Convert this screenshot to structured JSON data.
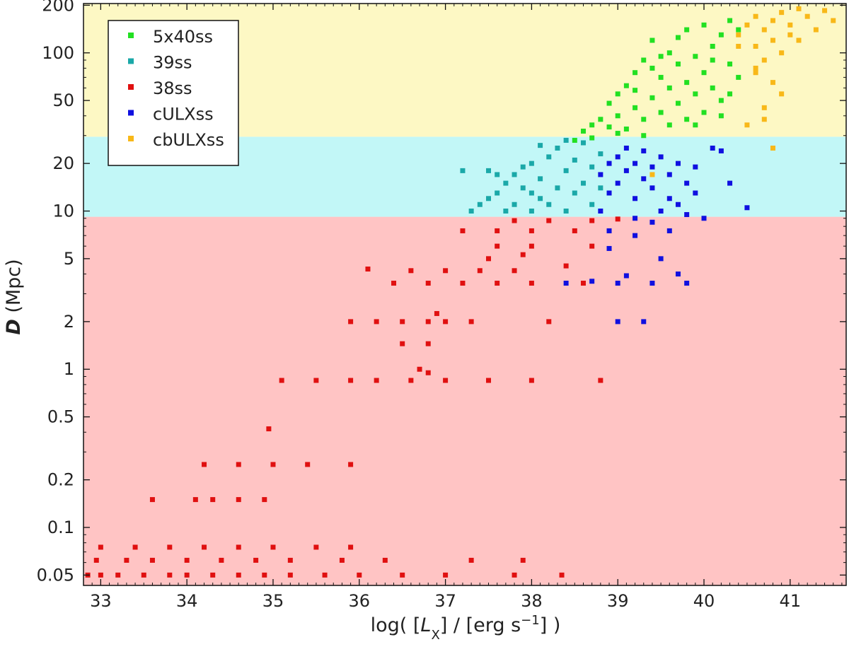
{
  "chart_data": {
    "type": "scatter",
    "title": "",
    "xlabel": {
      "prefix": "log( [",
      "var": "L",
      "sub": "X",
      "mid": "] / [erg s",
      "sup": "−1",
      "suffix": "] )"
    },
    "ylabel": {
      "var": "D",
      "rest": " (Mpc)"
    },
    "xlim": [
      32.8,
      41.65
    ],
    "ylim": [
      0.043,
      205
    ],
    "yscale": "log",
    "xticks": [
      33,
      34,
      35,
      36,
      37,
      38,
      39,
      40,
      41
    ],
    "xtick_labels": [
      "33",
      "34",
      "35",
      "36",
      "37",
      "38",
      "39",
      "40",
      "41"
    ],
    "yticks": [
      0.05,
      0.1,
      0.2,
      0.5,
      1,
      2,
      5,
      10,
      20,
      50,
      100,
      200
    ],
    "ytick_labels": [
      "0.05",
      "0.1",
      "0.2",
      "0.5",
      "1",
      "2",
      "5",
      "10",
      "20",
      "50",
      "100",
      "200"
    ],
    "grid": false,
    "legend_position": "top-left",
    "background_bands": [
      {
        "y_from": 0.043,
        "y_to": 9.2,
        "color": "#ffc4c4"
      },
      {
        "y_from": 9.2,
        "y_to": 29.5,
        "color": "#c2f7f7"
      },
      {
        "y_from": 29.5,
        "y_to": 205,
        "color": "#fdf8c4"
      }
    ],
    "series": [
      {
        "name": "5x40ss",
        "color": "#22e022",
        "points": [
          [
            38.5,
            28
          ],
          [
            38.6,
            32
          ],
          [
            38.7,
            35
          ],
          [
            38.8,
            38
          ],
          [
            38.9,
            34
          ],
          [
            39.0,
            40
          ],
          [
            39.0,
            55
          ],
          [
            39.1,
            33
          ],
          [
            39.1,
            62
          ],
          [
            39.2,
            45
          ],
          [
            39.2,
            75
          ],
          [
            39.3,
            38
          ],
          [
            39.3,
            90
          ],
          [
            39.4,
            52
          ],
          [
            39.4,
            120
          ],
          [
            39.5,
            42
          ],
          [
            39.5,
            70
          ],
          [
            39.6,
            35
          ],
          [
            39.6,
            60
          ],
          [
            39.6,
            100
          ],
          [
            39.7,
            48
          ],
          [
            39.7,
            85
          ],
          [
            39.8,
            38
          ],
          [
            39.8,
            65
          ],
          [
            39.8,
            140
          ],
          [
            39.9,
            55
          ],
          [
            39.9,
            95
          ],
          [
            40.0,
            42
          ],
          [
            40.0,
            75
          ],
          [
            40.0,
            150
          ],
          [
            40.1,
            60
          ],
          [
            40.1,
            110
          ],
          [
            40.2,
            50
          ],
          [
            40.2,
            130
          ],
          [
            40.3,
            85
          ],
          [
            40.3,
            160
          ],
          [
            40.4,
            70
          ],
          [
            40.4,
            140
          ],
          [
            38.9,
            48
          ],
          [
            39.2,
            58
          ],
          [
            39.5,
            95
          ],
          [
            39.7,
            125
          ],
          [
            40.1,
            90
          ],
          [
            40.2,
            40
          ],
          [
            39.3,
            30
          ],
          [
            38.7,
            29
          ],
          [
            39.9,
            35
          ],
          [
            40.3,
            55
          ],
          [
            39.4,
            80
          ],
          [
            39.0,
            31
          ]
        ]
      },
      {
        "name": "39ss",
        "color": "#1aa8a8",
        "points": [
          [
            37.3,
            10
          ],
          [
            37.4,
            11
          ],
          [
            37.5,
            12
          ],
          [
            37.6,
            13
          ],
          [
            37.7,
            10
          ],
          [
            37.7,
            15
          ],
          [
            37.8,
            17
          ],
          [
            37.8,
            11
          ],
          [
            37.9,
            14
          ],
          [
            37.9,
            19
          ],
          [
            38.0,
            10
          ],
          [
            38.0,
            13
          ],
          [
            38.0,
            20
          ],
          [
            38.1,
            12
          ],
          [
            38.1,
            16
          ],
          [
            38.2,
            22
          ],
          [
            38.2,
            11
          ],
          [
            38.3,
            14
          ],
          [
            38.3,
            25
          ],
          [
            38.4,
            10
          ],
          [
            38.4,
            18
          ],
          [
            38.5,
            13
          ],
          [
            38.5,
            21
          ],
          [
            38.6,
            15
          ],
          [
            38.6,
            27
          ],
          [
            38.7,
            11
          ],
          [
            38.7,
            19
          ],
          [
            38.8,
            23
          ],
          [
            38.8,
            14
          ],
          [
            37.6,
            17
          ],
          [
            37.2,
            18
          ],
          [
            38.4,
            28
          ],
          [
            38.1,
            26
          ],
          [
            37.5,
            18
          ]
        ]
      },
      {
        "name": "38ss",
        "color": "#e01010",
        "points": [
          [
            32.85,
            0.05
          ],
          [
            33.0,
            0.05
          ],
          [
            33.2,
            0.05
          ],
          [
            33.5,
            0.05
          ],
          [
            33.8,
            0.05
          ],
          [
            34.0,
            0.05
          ],
          [
            34.3,
            0.05
          ],
          [
            34.6,
            0.05
          ],
          [
            34.9,
            0.05
          ],
          [
            35.2,
            0.05
          ],
          [
            35.6,
            0.05
          ],
          [
            36.0,
            0.05
          ],
          [
            36.5,
            0.05
          ],
          [
            37.0,
            0.05
          ],
          [
            37.8,
            0.05
          ],
          [
            38.35,
            0.05
          ],
          [
            32.95,
            0.062
          ],
          [
            33.3,
            0.062
          ],
          [
            33.6,
            0.062
          ],
          [
            34.0,
            0.062
          ],
          [
            34.4,
            0.062
          ],
          [
            34.8,
            0.062
          ],
          [
            35.2,
            0.062
          ],
          [
            35.8,
            0.062
          ],
          [
            36.3,
            0.062
          ],
          [
            37.3,
            0.062
          ],
          [
            37.9,
            0.062
          ],
          [
            33.0,
            0.075
          ],
          [
            33.4,
            0.075
          ],
          [
            33.8,
            0.075
          ],
          [
            34.2,
            0.075
          ],
          [
            34.6,
            0.075
          ],
          [
            35.0,
            0.075
          ],
          [
            35.5,
            0.075
          ],
          [
            35.9,
            0.075
          ],
          [
            33.6,
            0.15
          ],
          [
            34.1,
            0.15
          ],
          [
            34.3,
            0.15
          ],
          [
            34.6,
            0.15
          ],
          [
            34.9,
            0.15
          ],
          [
            34.2,
            0.25
          ],
          [
            34.6,
            0.25
          ],
          [
            35.0,
            0.25
          ],
          [
            35.4,
            0.25
          ],
          [
            35.9,
            0.25
          ],
          [
            34.95,
            0.42
          ],
          [
            35.1,
            0.85
          ],
          [
            35.5,
            0.85
          ],
          [
            35.9,
            0.85
          ],
          [
            36.2,
            0.85
          ],
          [
            36.6,
            0.85
          ],
          [
            37.0,
            0.85
          ],
          [
            37.5,
            0.85
          ],
          [
            38.0,
            0.85
          ],
          [
            38.8,
            0.85
          ],
          [
            36.7,
            1.0
          ],
          [
            36.8,
            0.95
          ],
          [
            36.5,
            1.45
          ],
          [
            36.8,
            1.45
          ],
          [
            35.9,
            2.0
          ],
          [
            36.2,
            2.0
          ],
          [
            36.5,
            2.0
          ],
          [
            36.8,
            2.0
          ],
          [
            37.0,
            2.0
          ],
          [
            37.3,
            2.0
          ],
          [
            38.2,
            2.0
          ],
          [
            36.9,
            2.25
          ],
          [
            36.4,
            3.5
          ],
          [
            36.8,
            3.5
          ],
          [
            37.2,
            3.5
          ],
          [
            37.6,
            3.5
          ],
          [
            38.0,
            3.5
          ],
          [
            38.6,
            3.5
          ],
          [
            36.6,
            4.2
          ],
          [
            37.0,
            4.2
          ],
          [
            37.4,
            4.2
          ],
          [
            37.8,
            4.2
          ],
          [
            38.4,
            4.5
          ],
          [
            36.1,
            4.3
          ],
          [
            37.6,
            6.0
          ],
          [
            38.0,
            6.0
          ],
          [
            38.7,
            6.0
          ],
          [
            37.2,
            7.5
          ],
          [
            37.6,
            7.5
          ],
          [
            38.0,
            7.5
          ],
          [
            38.5,
            7.5
          ],
          [
            37.8,
            8.7
          ],
          [
            38.2,
            8.7
          ],
          [
            38.7,
            8.7
          ],
          [
            39.0,
            8.9
          ],
          [
            37.5,
            5.0
          ],
          [
            37.9,
            5.3
          ]
        ]
      },
      {
        "name": "cULXss",
        "color": "#1010e0",
        "points": [
          [
            38.8,
            17
          ],
          [
            38.9,
            20
          ],
          [
            38.9,
            13
          ],
          [
            39.0,
            22
          ],
          [
            39.0,
            15
          ],
          [
            39.1,
            18
          ],
          [
            39.1,
            25
          ],
          [
            39.2,
            12
          ],
          [
            39.2,
            20
          ],
          [
            39.3,
            16
          ],
          [
            39.3,
            24
          ],
          [
            39.4,
            14
          ],
          [
            39.4,
            19
          ],
          [
            39.5,
            22
          ],
          [
            39.5,
            10
          ],
          [
            39.6,
            17
          ],
          [
            39.6,
            12
          ],
          [
            39.7,
            20
          ],
          [
            39.7,
            11
          ],
          [
            39.8,
            15
          ],
          [
            39.8,
            9.5
          ],
          [
            39.9,
            13
          ],
          [
            39.9,
            19
          ],
          [
            40.0,
            9.0
          ],
          [
            40.1,
            25
          ],
          [
            40.2,
            24
          ],
          [
            40.3,
            15
          ],
          [
            40.5,
            10.5
          ],
          [
            39.2,
            9.0
          ],
          [
            39.4,
            8.5
          ],
          [
            38.8,
            10
          ],
          [
            38.9,
            7.5
          ],
          [
            39.2,
            7.0
          ],
          [
            39.6,
            7.5
          ],
          [
            39.5,
            5.0
          ],
          [
            39.7,
            4.0
          ],
          [
            39.0,
            3.5
          ],
          [
            39.4,
            3.5
          ],
          [
            39.8,
            3.5
          ],
          [
            38.7,
            3.6
          ],
          [
            39.0,
            2.0
          ],
          [
            39.3,
            2.0
          ],
          [
            39.1,
            3.9
          ],
          [
            38.9,
            5.8
          ],
          [
            38.4,
            3.5
          ]
        ]
      },
      {
        "name": "cbULXss",
        "color": "#f8b818",
        "points": [
          [
            40.4,
            130
          ],
          [
            40.5,
            150
          ],
          [
            40.6,
            170
          ],
          [
            40.6,
            110
          ],
          [
            40.7,
            140
          ],
          [
            40.7,
            90
          ],
          [
            40.8,
            160
          ],
          [
            40.8,
            120
          ],
          [
            40.9,
            180
          ],
          [
            40.9,
            100
          ],
          [
            41.0,
            150
          ],
          [
            41.1,
            190
          ],
          [
            41.1,
            120
          ],
          [
            41.2,
            170
          ],
          [
            41.3,
            140
          ],
          [
            41.4,
            185
          ],
          [
            41.5,
            160
          ],
          [
            40.6,
            75
          ],
          [
            40.8,
            65
          ],
          [
            40.7,
            45
          ],
          [
            40.9,
            55
          ],
          [
            40.5,
            35
          ],
          [
            40.7,
            38
          ],
          [
            40.8,
            25
          ],
          [
            40.6,
            80
          ],
          [
            41.0,
            130
          ],
          [
            40.4,
            110
          ],
          [
            39.4,
            17
          ]
        ]
      }
    ]
  }
}
